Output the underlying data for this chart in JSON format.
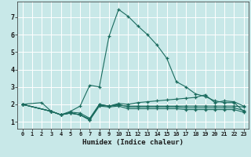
{
  "xlabel": "Humidex (Indice chaleur)",
  "bg_color": "#c8e8e8",
  "grid_color": "#ffffff",
  "line_color": "#1a6b5e",
  "xlim": [
    -0.5,
    23.5
  ],
  "ylim": [
    0.6,
    7.9
  ],
  "xticks": [
    0,
    1,
    2,
    3,
    4,
    5,
    6,
    7,
    8,
    9,
    10,
    11,
    12,
    13,
    14,
    15,
    16,
    17,
    18,
    19,
    20,
    21,
    22,
    23
  ],
  "yticks": [
    1,
    2,
    3,
    4,
    5,
    6,
    7
  ],
  "series": [
    {
      "x": [
        0,
        2,
        3,
        4,
        5,
        6,
        7,
        8,
        9,
        10,
        11,
        12,
        13,
        14,
        15,
        16,
        17,
        18,
        19,
        20,
        21,
        22,
        23
      ],
      "y": [
        2.0,
        2.1,
        1.6,
        1.4,
        1.6,
        1.9,
        3.1,
        3.0,
        5.9,
        7.45,
        7.05,
        6.5,
        6.0,
        5.4,
        4.65,
        3.3,
        3.0,
        2.6,
        2.45,
        2.2,
        2.1,
        2.1,
        1.6
      ]
    },
    {
      "x": [
        0,
        3,
        4,
        5,
        6,
        7,
        8,
        9,
        10,
        11,
        12,
        13,
        14,
        15,
        16,
        17,
        18,
        19,
        20,
        21,
        22,
        23
      ],
      "y": [
        2.0,
        1.6,
        1.4,
        1.5,
        1.4,
        1.1,
        1.9,
        1.85,
        1.9,
        1.75,
        1.75,
        1.75,
        1.75,
        1.75,
        1.75,
        1.7,
        1.7,
        1.7,
        1.7,
        1.7,
        1.7,
        1.55
      ]
    },
    {
      "x": [
        0,
        3,
        4,
        5,
        6,
        7,
        8,
        9,
        10,
        11,
        12,
        13,
        14,
        15,
        16,
        17,
        18,
        19,
        20,
        21,
        22,
        23
      ],
      "y": [
        2.0,
        1.6,
        1.4,
        1.5,
        1.4,
        1.15,
        2.0,
        1.9,
        2.0,
        1.85,
        1.85,
        1.85,
        1.85,
        1.85,
        1.85,
        1.8,
        1.8,
        1.8,
        1.8,
        1.8,
        1.8,
        1.65
      ]
    },
    {
      "x": [
        0,
        3,
        4,
        5,
        6,
        7,
        8,
        9,
        10,
        11,
        12,
        13,
        14,
        15,
        16,
        17,
        18,
        19,
        20,
        21,
        22,
        23
      ],
      "y": [
        2.0,
        1.6,
        1.4,
        1.5,
        1.4,
        1.1,
        1.95,
        1.9,
        2.05,
        2.0,
        2.1,
        2.15,
        2.2,
        2.25,
        2.3,
        2.35,
        2.4,
        2.55,
        2.1,
        2.2,
        2.15,
        1.9
      ]
    },
    {
      "x": [
        0,
        3,
        4,
        5,
        6,
        7,
        8,
        9,
        10,
        11,
        12,
        13,
        14,
        15,
        16,
        17,
        18,
        19,
        20,
        21,
        22,
        23
      ],
      "y": [
        2.0,
        1.6,
        1.4,
        1.55,
        1.5,
        1.2,
        2.0,
        1.9,
        1.95,
        1.9,
        1.9,
        1.9,
        1.9,
        1.9,
        1.9,
        1.9,
        1.9,
        1.9,
        1.9,
        1.9,
        1.9,
        1.85
      ]
    }
  ]
}
